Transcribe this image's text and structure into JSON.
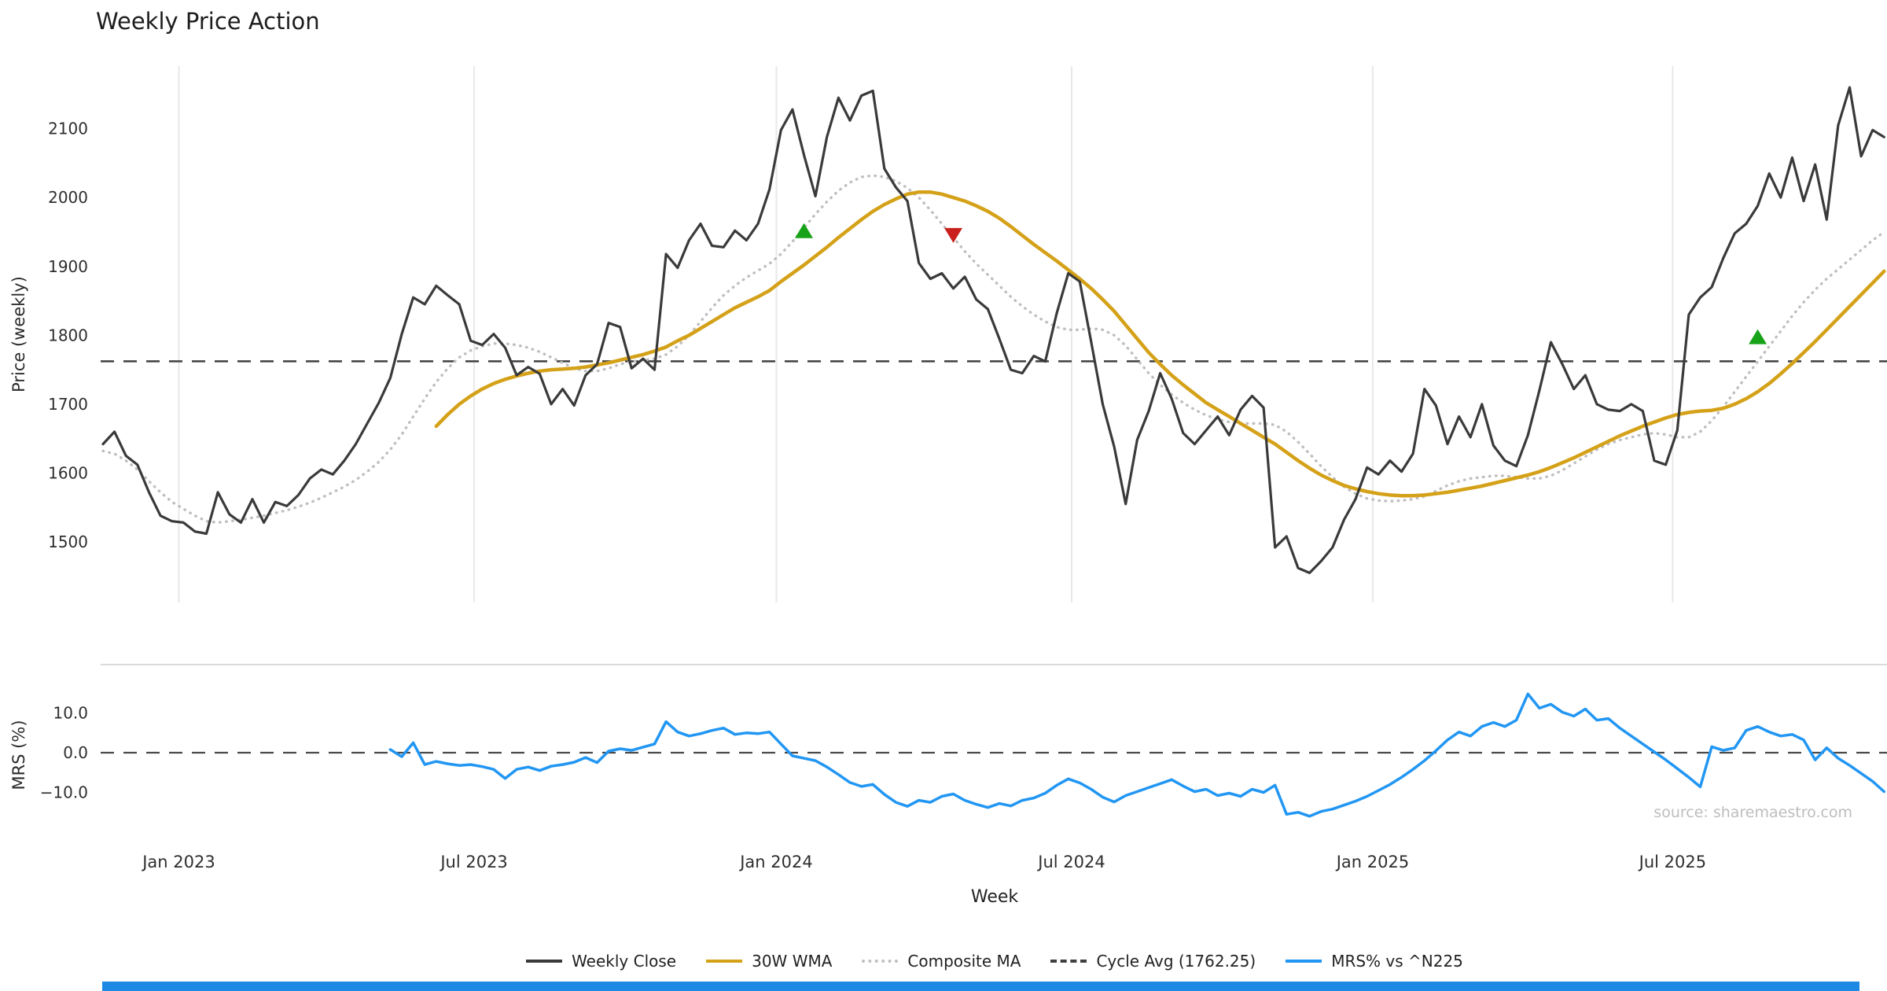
{
  "chart_data": {
    "type": "line",
    "title": "Weekly Price Action",
    "xlabel": "Week",
    "source": "source: sharemaestro.com",
    "x_unit": "weeks",
    "x_ticks": [
      {
        "label": "Jan 2023",
        "week": 6.6
      },
      {
        "label": "Jul 2023",
        "week": 32.3
      },
      {
        "label": "Jan 2024",
        "week": 58.6
      },
      {
        "label": "Jul 2024",
        "week": 84.3
      },
      {
        "label": "Jan 2025",
        "week": 110.5
      },
      {
        "label": "Jul 2025",
        "week": 136.6
      }
    ],
    "price_panel": {
      "ylabel": "Price (weekly)",
      "ylim": [
        1412,
        2191
      ],
      "yticks": [
        1500,
        1600,
        1700,
        1800,
        1900,
        2000,
        2100
      ],
      "cycle_avg": 1762.25,
      "cycle_avg_color": "#3f3f3f",
      "grid": "vertical-only",
      "series": [
        {
          "name": "Weekly Close",
          "color": "#3a3a3a",
          "style": "solid",
          "start_week": 0,
          "values": [
            1642,
            1660,
            1625,
            1612,
            1572,
            1538,
            1530,
            1528,
            1515,
            1512,
            1572,
            1540,
            1528,
            1562,
            1528,
            1558,
            1552,
            1568,
            1592,
            1605,
            1598,
            1618,
            1642,
            1672,
            1702,
            1738,
            1802,
            1855,
            1845,
            1872,
            1858,
            1845,
            1792,
            1786,
            1802,
            1782,
            1742,
            1754,
            1744,
            1700,
            1722,
            1698,
            1742,
            1758,
            1818,
            1812,
            1752,
            1766,
            1750,
            1918,
            1898,
            1938,
            1962,
            1930,
            1928,
            1952,
            1938,
            1962,
            2012,
            2098,
            2128,
            2062,
            2002,
            2088,
            2145,
            2112,
            2148,
            2155,
            2042,
            2015,
            1995,
            1905,
            1882,
            1890,
            1868,
            1885,
            1852,
            1838,
            1795,
            1750,
            1745,
            1770,
            1762,
            1832,
            1890,
            1878,
            1790,
            1700,
            1638,
            1555,
            1648,
            1690,
            1745,
            1708,
            1658,
            1642,
            1662,
            1682,
            1655,
            1692,
            1712,
            1695,
            1492,
            1508,
            1462,
            1455,
            1472,
            1492,
            1532,
            1562,
            1608,
            1598,
            1618,
            1602,
            1628,
            1722,
            1698,
            1642,
            1682,
            1652,
            1700,
            1640,
            1618,
            1610,
            1655,
            1720,
            1790,
            1758,
            1722,
            1742,
            1700,
            1692,
            1690,
            1700,
            1690,
            1618,
            1612,
            1662,
            1830,
            1855,
            1870,
            1912,
            1948,
            1962,
            1988,
            2035,
            2000,
            2058,
            1995,
            2048,
            1968,
            2105,
            2160,
            2060,
            2098,
            2088
          ]
        },
        {
          "name": "30W WMA",
          "color": "#d4a118",
          "style": "solid",
          "start_week": 29,
          "values": [
            1668,
            1685,
            1700,
            1712,
            1722,
            1730,
            1736,
            1741,
            1745,
            1748,
            1750,
            1751,
            1752,
            1754,
            1757,
            1760,
            1764,
            1768,
            1772,
            1777,
            1783,
            1792,
            1800,
            1810,
            1820,
            1830,
            1840,
            1848,
            1856,
            1865,
            1878,
            1890,
            1902,
            1915,
            1928,
            1942,
            1955,
            1968,
            1980,
            1990,
            1998,
            2005,
            2008,
            2008,
            2005,
            2000,
            1995,
            1988,
            1980,
            1970,
            1958,
            1945,
            1932,
            1920,
            1908,
            1895,
            1882,
            1868,
            1852,
            1835,
            1815,
            1795,
            1775,
            1758,
            1742,
            1728,
            1715,
            1702,
            1692,
            1682,
            1672,
            1662,
            1652,
            1642,
            1630,
            1618,
            1607,
            1597,
            1589,
            1582,
            1577,
            1573,
            1570,
            1568,
            1567,
            1567,
            1568,
            1570,
            1572,
            1575,
            1578,
            1581,
            1585,
            1589,
            1593,
            1597,
            1602,
            1608,
            1615,
            1622,
            1630,
            1638,
            1646,
            1654,
            1661,
            1668,
            1674,
            1680,
            1685,
            1688,
            1690,
            1691,
            1694,
            1700,
            1708,
            1718,
            1730,
            1744,
            1759,
            1775,
            1791,
            1808,
            1825,
            1842,
            1859,
            1876,
            1893
          ]
        },
        {
          "name": "Composite MA",
          "color": "#bfbfbf",
          "style": "dotted",
          "start_week": 0,
          "values": [
            1632,
            1628,
            1618,
            1605,
            1588,
            1572,
            1558,
            1548,
            1538,
            1530,
            1528,
            1530,
            1532,
            1535,
            1538,
            1542,
            1546,
            1551,
            1557,
            1564,
            1572,
            1580,
            1590,
            1602,
            1616,
            1634,
            1656,
            1682,
            1708,
            1732,
            1752,
            1768,
            1778,
            1784,
            1788,
            1788,
            1786,
            1782,
            1776,
            1768,
            1760,
            1752,
            1748,
            1748,
            1752,
            1758,
            1762,
            1764,
            1766,
            1772,
            1784,
            1800,
            1820,
            1840,
            1858,
            1872,
            1884,
            1894,
            1904,
            1918,
            1936,
            1956,
            1976,
            1994,
            2010,
            2022,
            2030,
            2032,
            2030,
            2024,
            2014,
            2000,
            1982,
            1962,
            1942,
            1922,
            1904,
            1888,
            1872,
            1856,
            1842,
            1830,
            1820,
            1812,
            1808,
            1808,
            1810,
            1808,
            1800,
            1785,
            1765,
            1745,
            1728,
            1714,
            1702,
            1692,
            1684,
            1678,
            1674,
            1672,
            1672,
            1672,
            1670,
            1660,
            1645,
            1628,
            1610,
            1594,
            1580,
            1570,
            1563,
            1560,
            1559,
            1560,
            1562,
            1566,
            1574,
            1582,
            1588,
            1592,
            1594,
            1596,
            1596,
            1594,
            1592,
            1592,
            1596,
            1604,
            1614,
            1624,
            1634,
            1642,
            1648,
            1652,
            1656,
            1658,
            1656,
            1652,
            1652,
            1660,
            1676,
            1696,
            1718,
            1740,
            1762,
            1784,
            1806,
            1828,
            1848,
            1866,
            1882,
            1896,
            1910,
            1924,
            1938,
            1950
          ]
        }
      ],
      "markers": [
        {
          "type": "buy",
          "shape": "triangle-up",
          "color": "#17a317",
          "week": 61,
          "value": 1952
        },
        {
          "type": "sell",
          "shape": "triangle-down",
          "color": "#c9201d",
          "week": 74,
          "value": 1945
        },
        {
          "type": "buy",
          "shape": "triangle-up",
          "color": "#17a317",
          "week": 144,
          "value": 1798
        }
      ]
    },
    "mrs_panel": {
      "ylabel": "MRS (%)",
      "ylim": [
        -22,
        22
      ],
      "yticks": [
        {
          "label": "10.0",
          "value": 10
        },
        {
          "label": "0.0",
          "value": 0
        },
        {
          "label": "−10.0",
          "value": -10
        }
      ],
      "zero_line": 0,
      "series": [
        {
          "name": "MRS% vs ^N225",
          "color": "#2196f3",
          "style": "solid",
          "start_week": 25,
          "values": [
            0.8,
            -1.0,
            2.5,
            -3.0,
            -2.2,
            -2.8,
            -3.2,
            -3.0,
            -3.5,
            -4.2,
            -6.5,
            -4.2,
            -3.6,
            -4.5,
            -3.4,
            -3.0,
            -2.4,
            -1.2,
            -2.5,
            0.4,
            1.0,
            0.6,
            1.4,
            2.2,
            7.8,
            5.2,
            4.2,
            4.8,
            5.6,
            6.2,
            4.6,
            5.0,
            4.8,
            5.2,
            2.2,
            -0.8,
            -1.4,
            -2.0,
            -3.6,
            -5.5,
            -7.5,
            -8.5,
            -8.0,
            -10.5,
            -12.5,
            -13.5,
            -12.0,
            -12.5,
            -11.0,
            -10.4,
            -12.0,
            -13.0,
            -13.8,
            -12.8,
            -13.4,
            -12.0,
            -11.4,
            -10.2,
            -8.2,
            -6.6,
            -7.6,
            -9.2,
            -11.2,
            -12.4,
            -10.8,
            -9.8,
            -8.8,
            -7.8,
            -6.8,
            -8.4,
            -9.8,
            -9.2,
            -10.8,
            -10.2,
            -11.0,
            -9.2,
            -10.0,
            -8.2,
            -15.5,
            -15.0,
            -16.0,
            -14.8,
            -14.2,
            -13.2,
            -12.2,
            -11.0,
            -9.5,
            -8.0,
            -6.2,
            -4.2,
            -2.0,
            0.5,
            3.2,
            5.2,
            4.2,
            6.6,
            7.6,
            6.6,
            8.2,
            14.8,
            11.2,
            12.2,
            10.2,
            9.2,
            11.0,
            8.2,
            8.6,
            6.2,
            4.2,
            2.2,
            0.2,
            -1.8,
            -4.0,
            -6.2,
            -8.6,
            1.5,
            0.6,
            1.2,
            5.6,
            6.6,
            5.2,
            4.2,
            4.6,
            3.2,
            -1.8,
            1.2,
            -1.4,
            -3.2,
            -5.2,
            -7.2,
            -9.8
          ]
        }
      ]
    },
    "legend": [
      {
        "label": "Weekly Close",
        "color": "#3a3a3a",
        "style": "solid"
      },
      {
        "label": "30W WMA",
        "color": "#d4a118",
        "style": "solid"
      },
      {
        "label": "Composite MA",
        "color": "#bfbfbf",
        "style": "dotted"
      },
      {
        "label": "Cycle Avg (1762.25)",
        "color": "#3f3f3f",
        "style": "dashed"
      },
      {
        "label": "MRS% vs ^N225",
        "color": "#2196f3",
        "style": "solid"
      }
    ],
    "legend_position": "bottom-center",
    "accent_bar_color": "#1e88e5"
  }
}
